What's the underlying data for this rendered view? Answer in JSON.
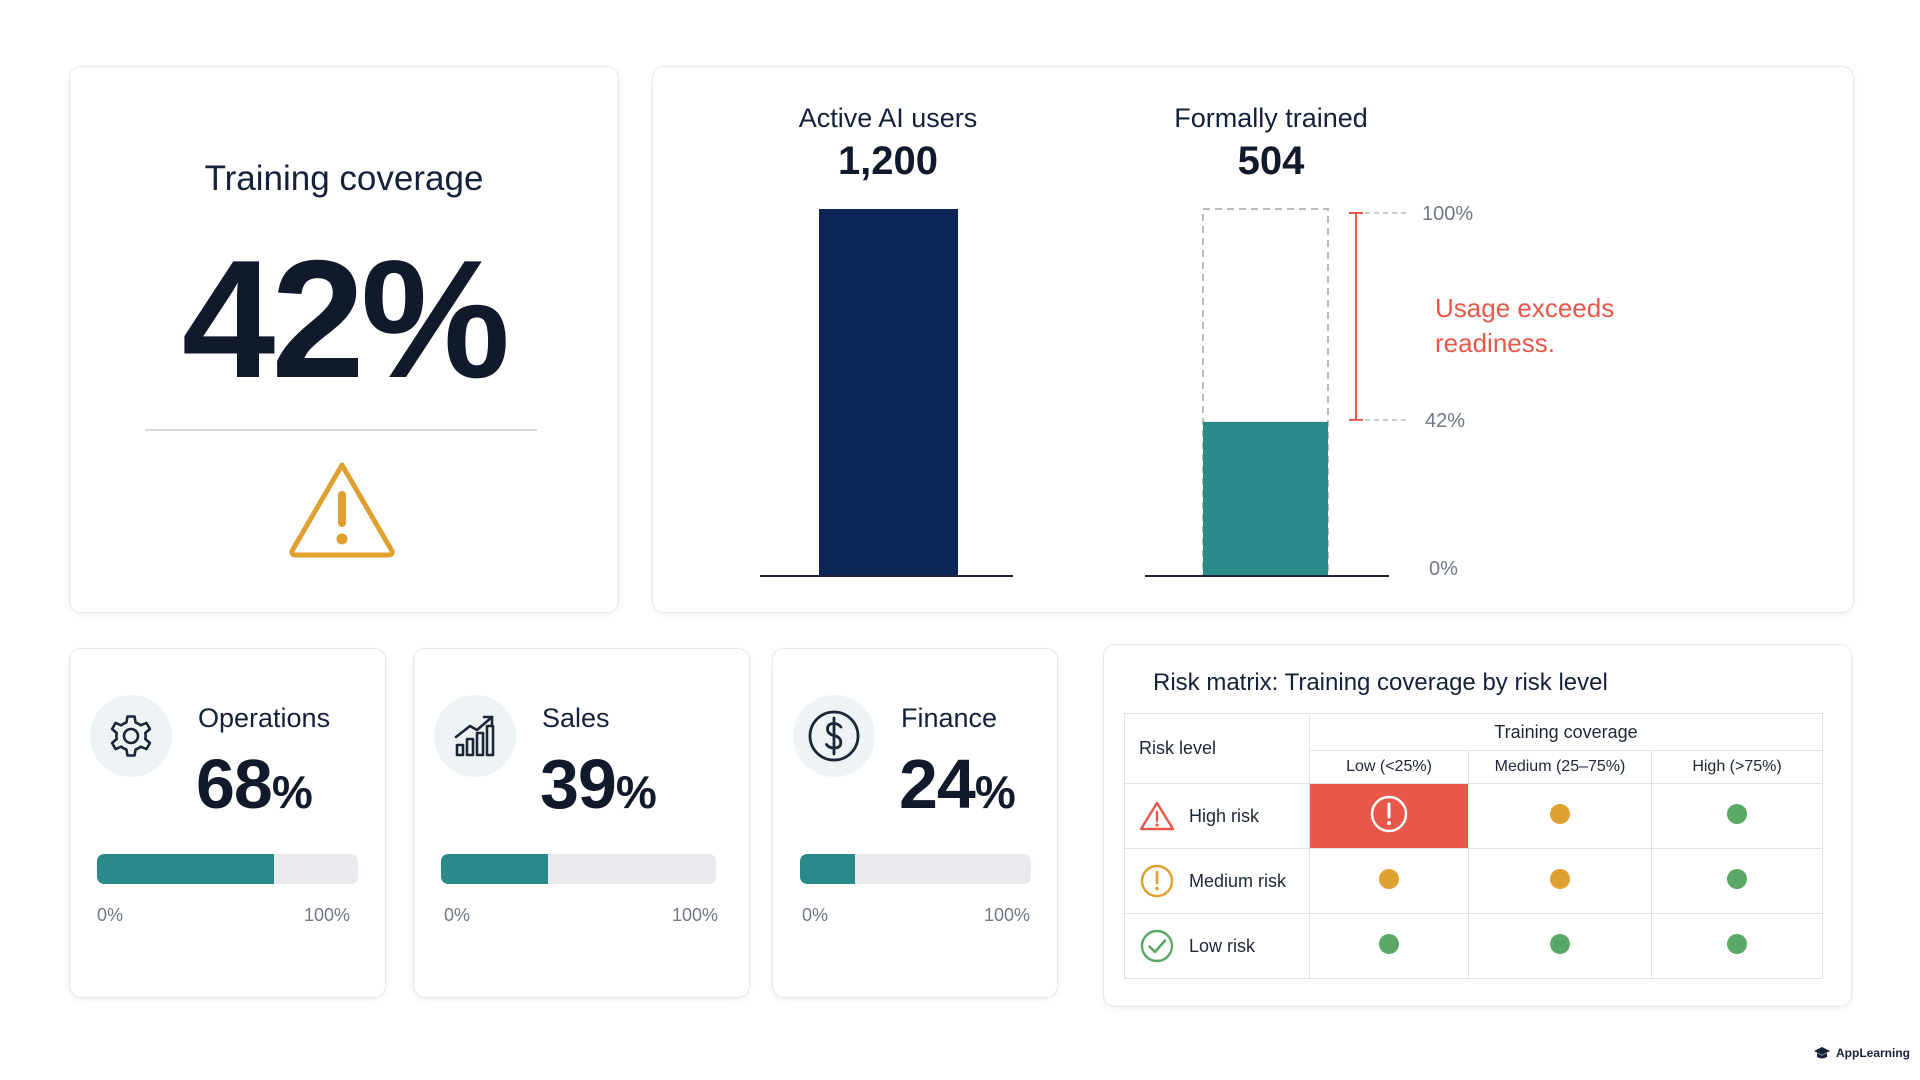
{
  "colors": {
    "navy": "#0b2656",
    "teal": "#2a8a8a",
    "warning_amber": "#e0a030",
    "alert_red": "#e8584a",
    "green": "#5aa866",
    "bar_track": "#e8eaed"
  },
  "coverage": {
    "title": "Training coverage",
    "value": "42%",
    "icon": "warning-triangle-icon"
  },
  "comparison": {
    "annotation_line1": "Usage exceeds",
    "annotation_line2": "readiness.",
    "scale_labels": [
      "100%",
      "42%",
      "0%"
    ]
  },
  "chart_data": {
    "type": "bar",
    "categories": [
      "Active AI users",
      "Formally trained"
    ],
    "values": [
      1200,
      504
    ],
    "value_labels": [
      "1,200",
      "504"
    ],
    "trained_share_percent": 42,
    "ylim": [
      0,
      1200
    ],
    "grid": false
  },
  "departments": [
    {
      "name": "Operations",
      "value": "68",
      "unit": "%",
      "fill_percent": 68,
      "icon": "gear-icon",
      "min_label": "0%",
      "max_label": "100%"
    },
    {
      "name": "Sales",
      "value": "39",
      "unit": "%",
      "fill_percent": 39,
      "icon": "growth-chart-icon",
      "min_label": "0%",
      "max_label": "100%"
    },
    {
      "name": "Finance",
      "value": "24",
      "unit": "%",
      "fill_percent": 24,
      "icon": "dollar-icon",
      "min_label": "0%",
      "max_label": "100%"
    }
  ],
  "risk_matrix": {
    "title": "Risk matrix: Training coverage by risk level",
    "row_header": "Risk level",
    "group_header": "Training coverage",
    "columns": [
      "Low (<25%)",
      "Medium (25–75%)",
      "High (>75%)"
    ],
    "rows": [
      {
        "label": "High risk",
        "icon": "warning-triangle-icon",
        "cells": [
          "alert",
          "amber",
          "green"
        ]
      },
      {
        "label": "Medium risk",
        "icon": "exclamation-circle-icon",
        "cells": [
          "amber",
          "amber",
          "green"
        ]
      },
      {
        "label": "Low risk",
        "icon": "check-circle-icon",
        "cells": [
          "green",
          "green",
          "green"
        ]
      }
    ]
  },
  "footer": {
    "brand": "AppLearning"
  }
}
